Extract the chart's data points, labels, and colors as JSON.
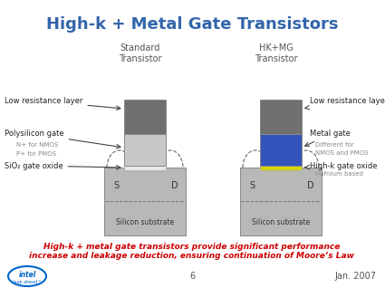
{
  "title": "High-k + Metal Gate Transistors",
  "title_color": "#3366aa",
  "title_fontsize": 13,
  "bg_color": "#ffffff",
  "std_label": "Standard\nTransistor",
  "hk_label": "HK+MG\nTransistor",
  "bottom_text": "High-k + metal gate transistors provide significant performance\nincrease and leakage reduction, ensuring continuation of Moore’s Law",
  "bottom_text_color": "#cc0000",
  "footer_page": "6",
  "footer_date": "Jan. 2007",
  "colors": {
    "dark_gray": "#707070",
    "light_gray": "#c8c8c8",
    "substrate_gray": "#b8b8b8",
    "sio2_white": "#e8e8e8",
    "blue_gate": "#3355bb",
    "yellow_hk": "#d4d400",
    "border": "#888888",
    "text_dark": "#222222",
    "text_gray": "#888888",
    "arrow": "#444444"
  }
}
